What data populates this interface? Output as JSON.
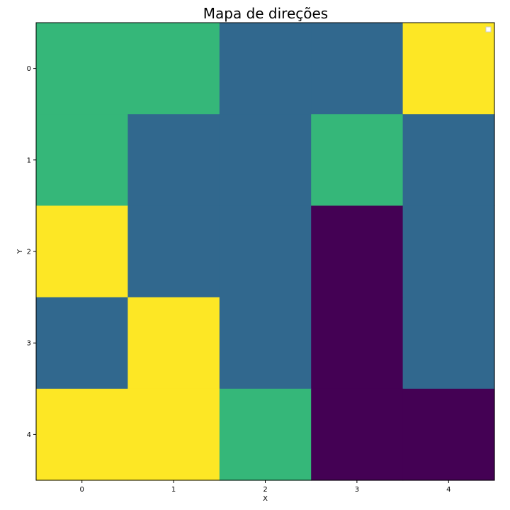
{
  "chart_data": {
    "type": "heatmap",
    "title": "Mapa de direções",
    "xlabel": "X",
    "ylabel": "Y",
    "x_ticks": [
      "0",
      "1",
      "2",
      "3",
      "4"
    ],
    "y_ticks": [
      "0",
      "1",
      "2",
      "3",
      "4"
    ],
    "y_axis_direction": "top-to-bottom",
    "values": [
      [
        2,
        2,
        1,
        1,
        3
      ],
      [
        2,
        1,
        1,
        2,
        1
      ],
      [
        3,
        1,
        1,
        0,
        1
      ],
      [
        1,
        3,
        1,
        0,
        1
      ],
      [
        3,
        3,
        2,
        0,
        0
      ]
    ],
    "colormap": {
      "0": "#440154",
      "1": "#31688e",
      "2": "#35b779",
      "3": "#fde725"
    },
    "legend": {
      "placement": "top-right",
      "entries": []
    },
    "grid": false
  }
}
